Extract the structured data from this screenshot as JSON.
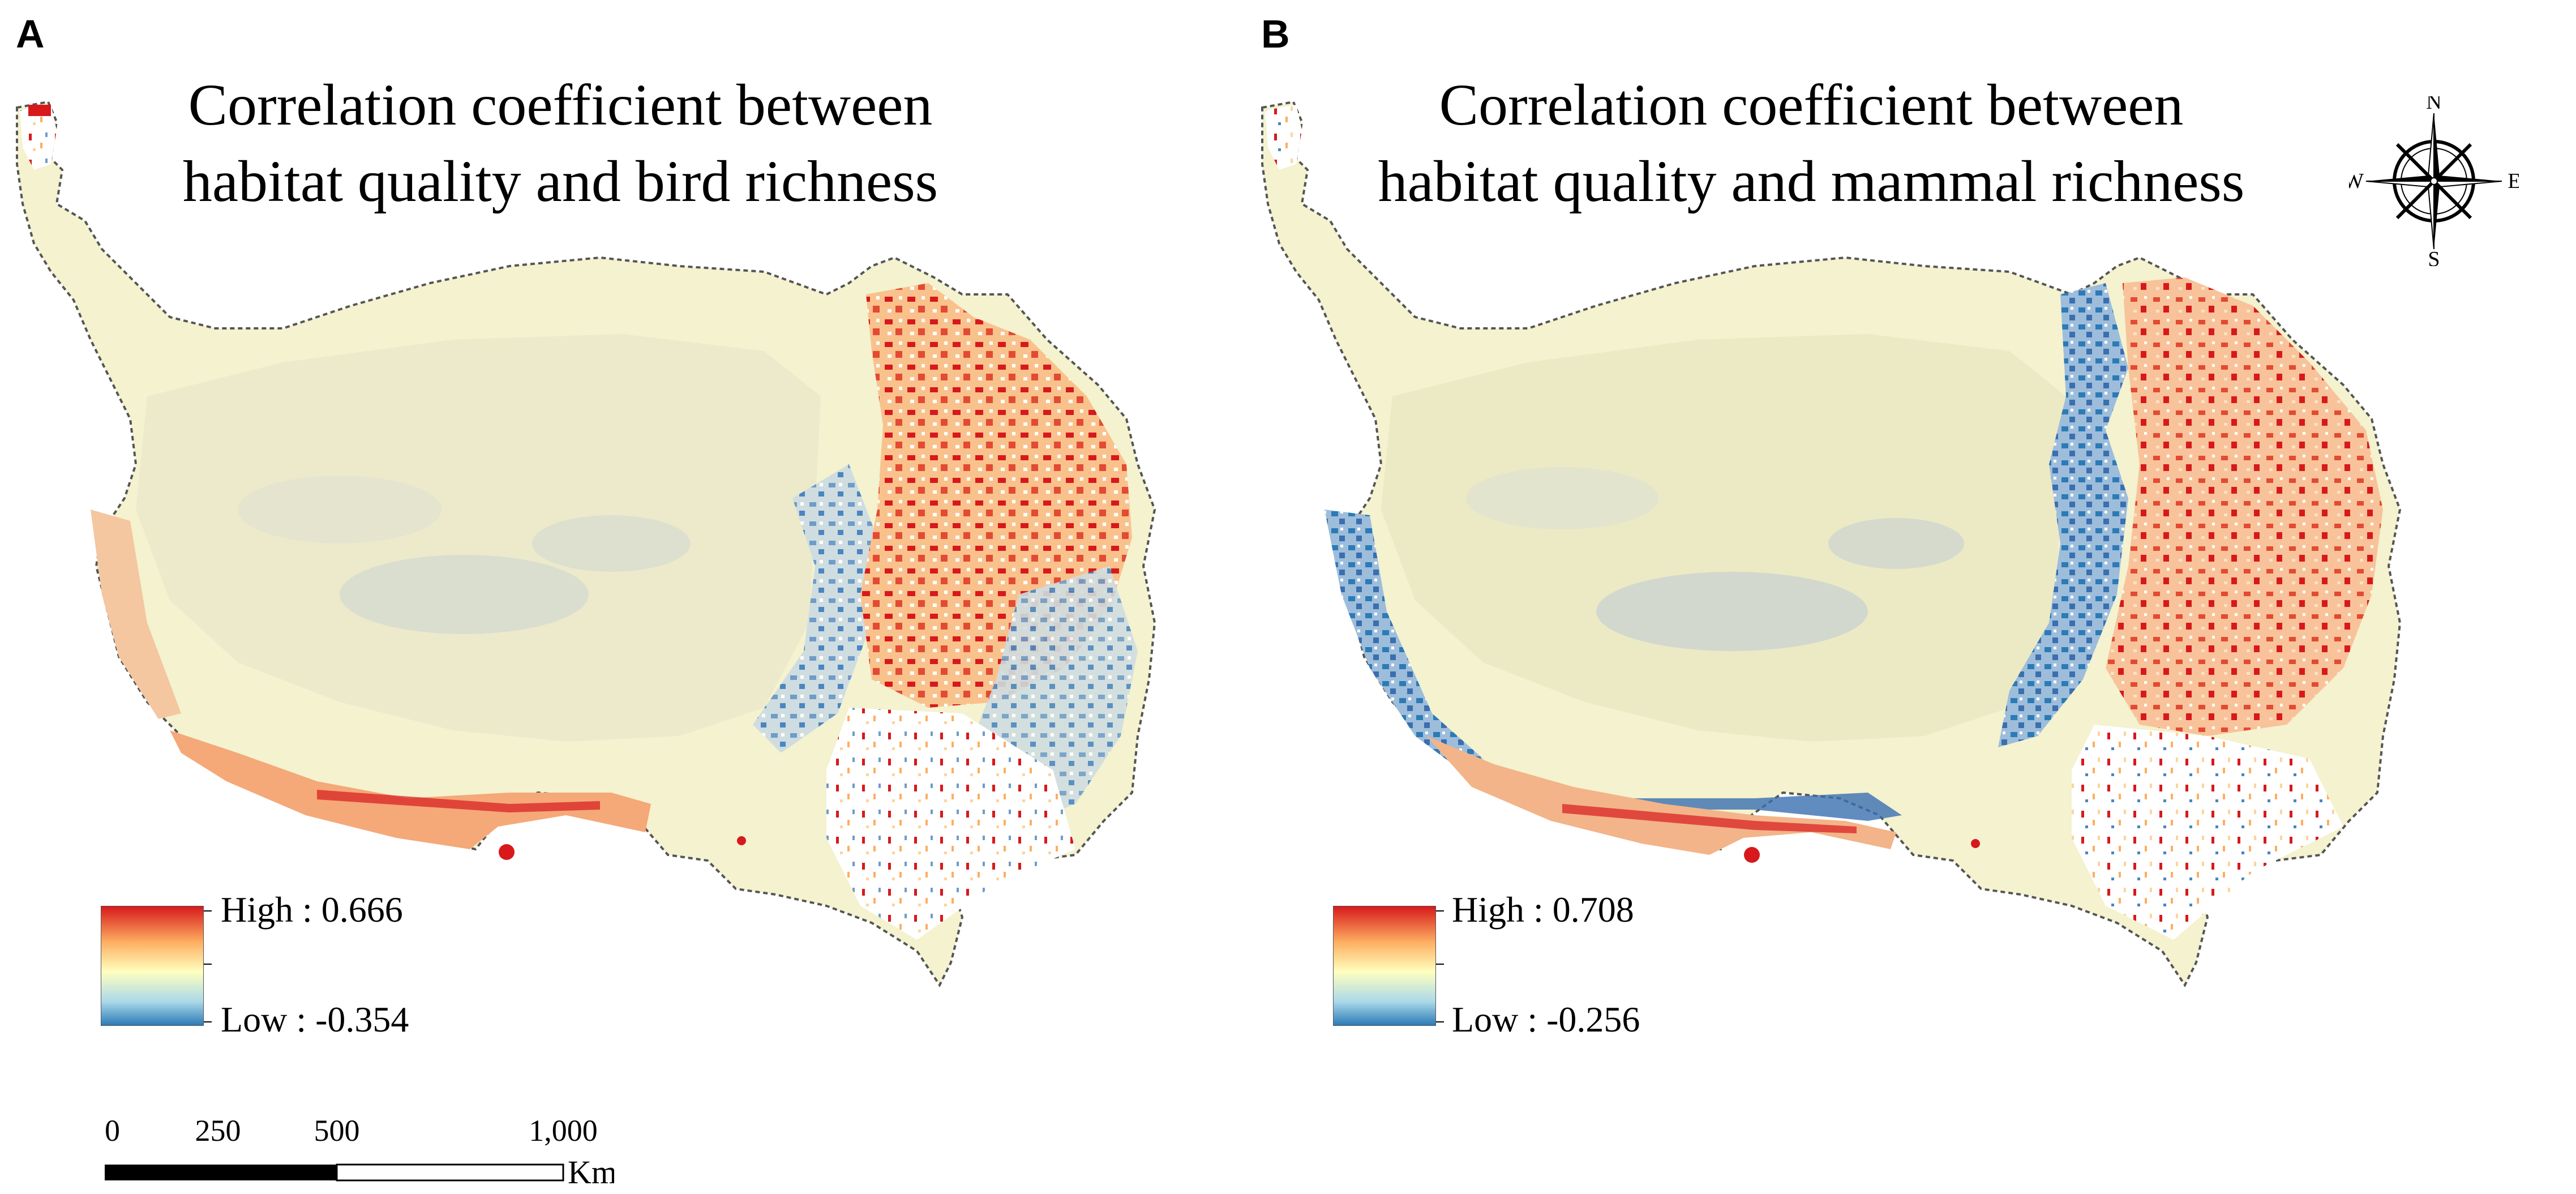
{
  "panels": [
    {
      "letter": "A",
      "title_line1": "Correlation coefficient between",
      "title_line2": "habitat quality and bird richness",
      "legend": {
        "high_label": "High : 0.666",
        "low_label": "Low :  -0.354",
        "high": 0.666,
        "low": -0.354
      }
    },
    {
      "letter": "B",
      "title_line1": "Correlation coefficient between",
      "title_line2": "habitat quality and mammal richness",
      "legend": {
        "high_label": "High : 0.708",
        "low_label": "Low :  -0.256",
        "high": 0.708,
        "low": -0.256
      }
    }
  ],
  "compass": {
    "n": "N",
    "s": "S",
    "e": "E",
    "w": "W"
  },
  "scalebar": {
    "ticks": [
      "0",
      "250",
      "500",
      "1,000"
    ],
    "unit": "Km"
  },
  "colors": {
    "high": "#d7191c",
    "mid_high": "#fdae61",
    "mid": "#ffffbf",
    "mid_low": "#abd9e9",
    "low": "#2c7bb6",
    "background_fill": "#f2f0c8",
    "boundary": "#555555"
  }
}
